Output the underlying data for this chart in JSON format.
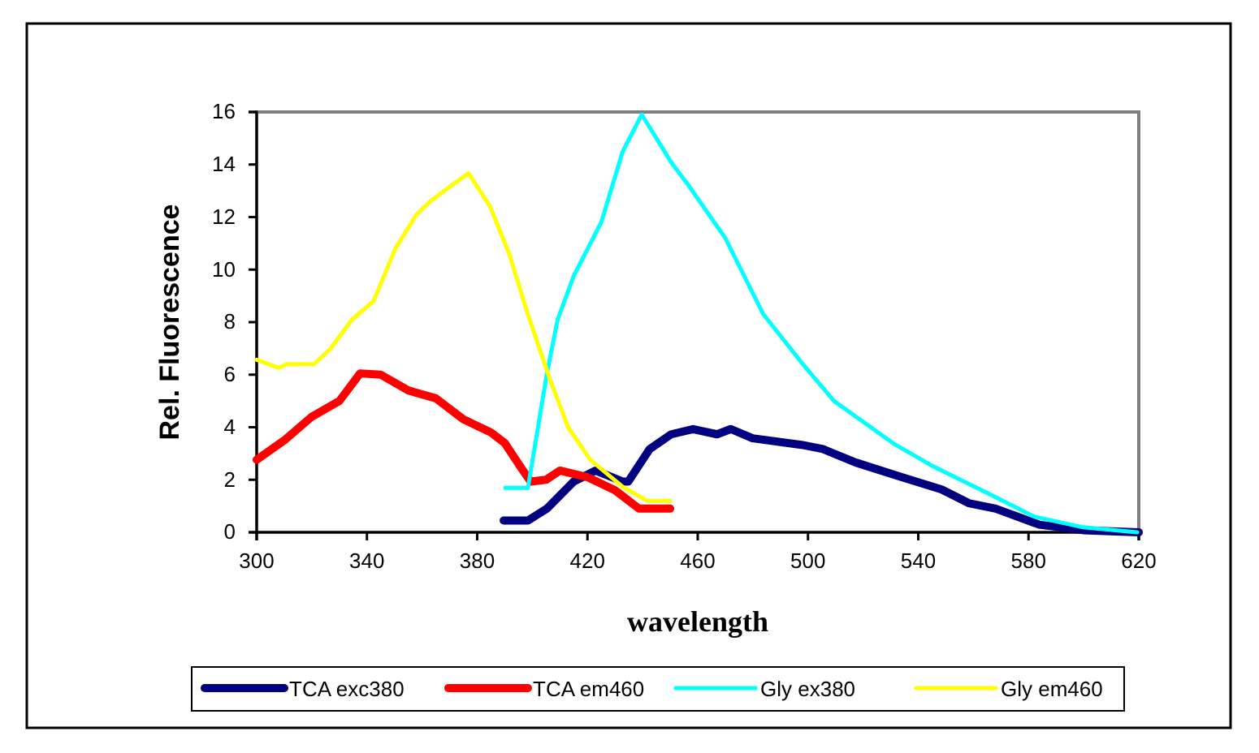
{
  "chart_data": {
    "type": "line",
    "xlabel": "wavelength",
    "ylabel": "Rel. Fluorescence",
    "xlim": [
      300,
      620
    ],
    "xticks": [
      300,
      340,
      380,
      420,
      460,
      500,
      540,
      580,
      620
    ],
    "ylim": [
      0,
      16
    ],
    "yticks": [
      0,
      2,
      4,
      6,
      8,
      10,
      12,
      14,
      16
    ],
    "grid": false,
    "legend": "bottom",
    "marker": "none",
    "line_style": "solid",
    "series": [
      {
        "name": "TCA exc380",
        "color": "#000080",
        "x": [
          389.6,
          398.4,
          405.3,
          415,
          422.9,
          432.8,
          434.8,
          442.6,
          450.4,
          458.3,
          467,
          472,
          479.9,
          497.6,
          505.4,
          517.2,
          532.8,
          548.5,
          558.3,
          568.1,
          583.9,
          599.8,
          620
        ],
        "values": [
          0.45,
          0.45,
          0.9,
          1.93,
          2.35,
          1.93,
          1.93,
          3.17,
          3.73,
          3.93,
          3.73,
          3.93,
          3.58,
          3.33,
          3.17,
          2.66,
          2.14,
          1.63,
          1.11,
          0.9,
          0.29,
          0.08,
          0
        ]
      },
      {
        "name": "TCA em460",
        "color": "#ff0000",
        "x": [
          300,
          310,
          320,
          330,
          337.5,
          345,
          355,
          365,
          375,
          385,
          390,
          395,
          399.4,
          405,
          410,
          420,
          430,
          438.7,
          450
        ],
        "values": [
          2.76,
          3.5,
          4.4,
          5.0,
          6.05,
          6.0,
          5.4,
          5.1,
          4.3,
          3.8,
          3.4,
          2.6,
          1.93,
          2.0,
          2.35,
          2.1,
          1.6,
          0.9,
          0.9
        ]
      },
      {
        "name": "Gly ex380",
        "color": "#00ffff",
        "x": [
          390.2,
          398.4,
          405.3,
          409.2,
          415,
          425,
          432.8,
          439.7,
          450.4,
          456.3,
          470,
          483.8,
          497.6,
          509.4,
          531,
          544.7,
          564.4,
          582,
          599.8,
          619.4
        ],
        "values": [
          1.69,
          1.69,
          6.05,
          8.1,
          9.76,
          11.8,
          14.5,
          15.9,
          14.08,
          13.26,
          11.2,
          8.3,
          6.47,
          5.0,
          3.38,
          2.55,
          1.53,
          0.6,
          0.19,
          0
        ]
      },
      {
        "name": "Gly em460",
        "color": "#ffff00",
        "x": [
          300,
          308,
          311,
          320.8,
          326.7,
          334.6,
          342.4,
          350.3,
          358,
          363,
          370,
          376.8,
          384.7,
          391.6,
          398.4,
          406.3,
          413,
          421,
          432.8,
          441.6,
          450
        ],
        "values": [
          6.57,
          6.26,
          6.4,
          6.4,
          6.98,
          8.1,
          8.8,
          10.8,
          12.1,
          12.6,
          13.15,
          13.67,
          12.4,
          10.6,
          8.3,
          5.85,
          4.0,
          2.76,
          1.73,
          1.2,
          1.2
        ]
      }
    ]
  }
}
